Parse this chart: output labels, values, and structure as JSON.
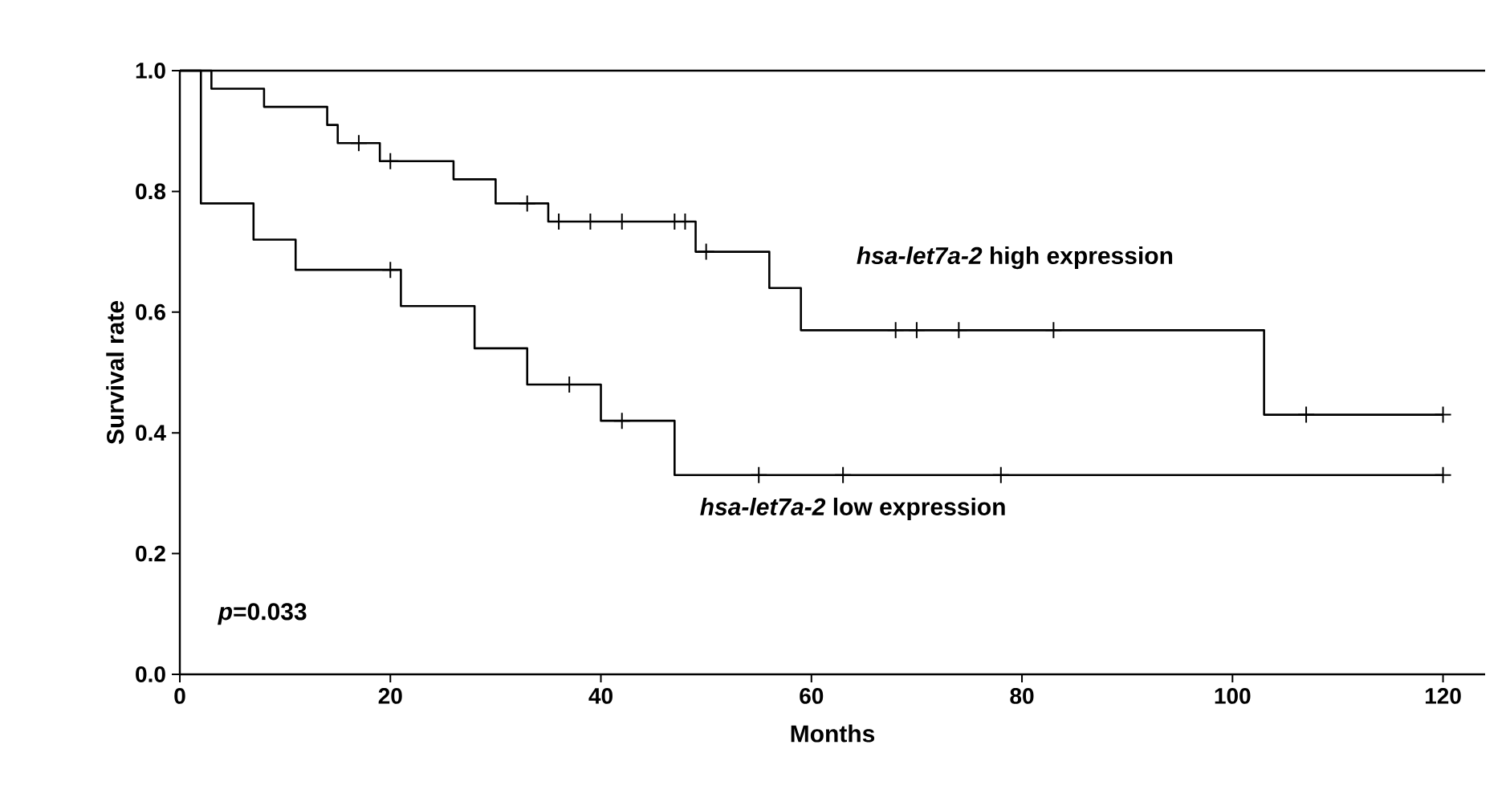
{
  "chart_data": {
    "type": "step",
    "xlabel": "Months",
    "ylabel": "Survival rate",
    "xlim": [
      0,
      124
    ],
    "xticks": [
      0,
      20,
      40,
      60,
      80,
      100,
      120
    ],
    "ylim": [
      0,
      1.0
    ],
    "yticks": [
      {
        "value": 0,
        "label": "0.0"
      },
      {
        "value": 0.2,
        "label": "0.2"
      },
      {
        "value": 0.4,
        "label": "0.4"
      },
      {
        "value": 0.6,
        "label": "0.6"
      },
      {
        "value": 0.8,
        "label": "0.8"
      },
      {
        "value": 1.0,
        "label": "1.0"
      }
    ],
    "grid": false,
    "legend": false,
    "line_style": "solid",
    "series": [
      {
        "name": "*hsa-let7a-2* high expression",
        "color": "#000000",
        "x": [
          0,
          3,
          8,
          14,
          15,
          19,
          26,
          30,
          35,
          49,
          56,
          59,
          103,
          120
        ],
        "values": [
          1,
          0.97,
          0.94,
          0.91,
          0.88,
          0.85,
          0.82,
          0.78,
          0.75,
          0.7,
          0.64,
          0.57,
          0.43,
          0.43
        ]
      },
      {
        "name": "*hsa-let7a-2* low expression",
        "color": "#000000",
        "x": [
          0,
          2,
          7,
          11,
          21,
          28,
          33,
          40,
          47,
          120
        ],
        "values": [
          1,
          0.78,
          0.72,
          0.67,
          0.61,
          0.54,
          0.48,
          0.42,
          0.33,
          0.33
        ]
      },
      {
        "type": "scatter",
        "marker": "cross",
        "color": "#000000",
        "x": [
          17,
          20,
          33,
          36,
          39,
          42,
          47,
          48,
          50,
          68,
          70,
          74,
          83,
          107,
          120
        ],
        "values": [
          0.88,
          0.85,
          0.78,
          0.75,
          0.75,
          0.75,
          0.75,
          0.75,
          0.7,
          0.57,
          0.57,
          0.57,
          0.57,
          0.43,
          0.43
        ]
      },
      {
        "type": "scatter",
        "marker": "cross",
        "color": "#000000",
        "x": [
          20,
          37,
          42,
          55,
          63,
          78,
          120
        ],
        "values": [
          0.67,
          0.48,
          0.42,
          0.33,
          0.33,
          0.33,
          0.33
        ]
      }
    ],
    "annotations": [
      "*p*=0.033"
    ]
  }
}
